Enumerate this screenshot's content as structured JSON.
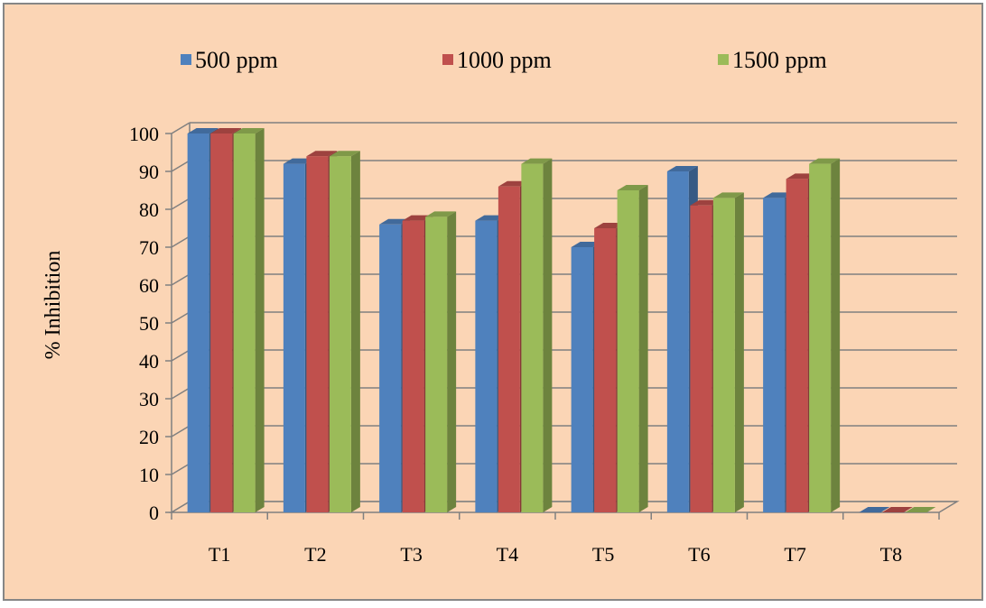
{
  "chart_data": {
    "type": "bar",
    "title": "",
    "xlabel": "",
    "ylabel": "% Inhibition",
    "ylim": [
      0,
      100
    ],
    "yticks": [
      0,
      10,
      20,
      30,
      40,
      50,
      60,
      70,
      80,
      90,
      100
    ],
    "categories": [
      "T1",
      "T2",
      "T3",
      "T4",
      "T5",
      "T6",
      "T7",
      "T8"
    ],
    "series": [
      {
        "name": "500 ppm",
        "color": "#4F81BD",
        "values": [
          100,
          92,
          76,
          77,
          70,
          90,
          83,
          0
        ]
      },
      {
        "name": "1000 ppm",
        "color": "#C0504D",
        "values": [
          100,
          94,
          77,
          86,
          75,
          81,
          88,
          0
        ]
      },
      {
        "name": "1500 ppm",
        "color": "#9BBB59",
        "values": [
          100,
          94,
          78,
          92,
          85,
          83,
          92,
          0
        ]
      }
    ],
    "grid": true,
    "legend_position": "top",
    "background_color": "#FBD5B5",
    "border_color": "#868686"
  }
}
